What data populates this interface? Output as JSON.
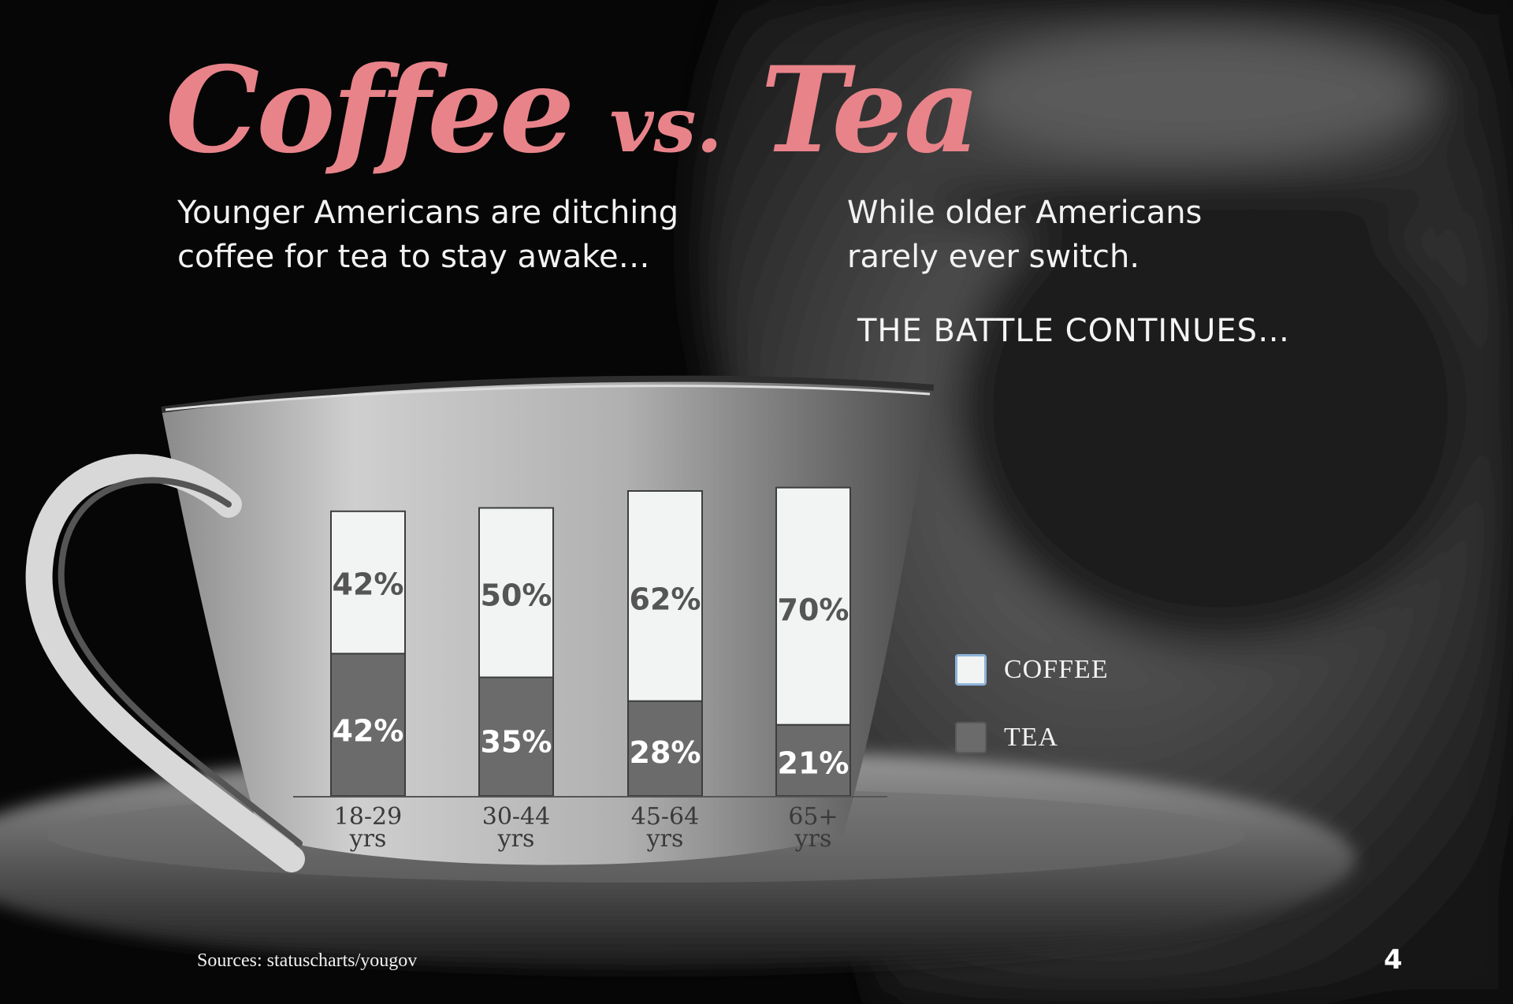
{
  "header": {
    "title_main": "Coffee",
    "title_vs": "vs.",
    "title_tea": "Tea",
    "subtitle_left": "Younger Americans are ditching coffee for tea to stay awake…",
    "subtitle_right": "While older Americans rarely ever switch.",
    "tagline": "THE BATTLE CONTINUES…"
  },
  "legend": {
    "coffee": "COFFEE",
    "tea": "TEA"
  },
  "footer": {
    "source": "Sources: statuscharts/yougov",
    "page_number": "4"
  },
  "colors": {
    "title": "#e8838a",
    "coffee": "#f1f4f3",
    "tea": "#6b6b6b"
  },
  "chart_data": {
    "type": "bar",
    "categories": [
      "18-29 yrs",
      "30-44 yrs",
      "45-64 yrs",
      "65+ yrs"
    ],
    "category_lines": [
      [
        "18-29",
        "yrs"
      ],
      [
        "30-44",
        "yrs"
      ],
      [
        "45-64",
        "yrs"
      ],
      [
        "65+",
        "yrs"
      ]
    ],
    "series": [
      {
        "name": "TEA",
        "values": [
          42,
          35,
          28,
          21
        ]
      },
      {
        "name": "COFFEE",
        "values": [
          42,
          50,
          62,
          70
        ]
      }
    ],
    "value_labels": {
      "TEA": [
        "42%",
        "35%",
        "28%",
        "21%"
      ],
      "COFFEE": [
        "42%",
        "50%",
        "62%",
        "70%"
      ]
    },
    "stacked": true,
    "title": "",
    "xlabel": "",
    "ylabel": "",
    "ylim": [
      0,
      100
    ],
    "grid": false,
    "legend_position": "right"
  }
}
